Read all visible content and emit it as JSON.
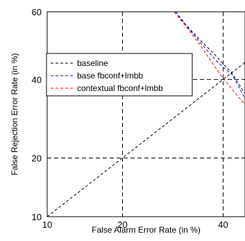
{
  "chart_data": {
    "type": "line",
    "title": "",
    "xlabel": "False Alarm Error Rate (in %)",
    "ylabel": "False Rejection Error Rate (in %)",
    "xscale": "probit",
    "yscale": "probit",
    "xlim": [
      10,
      45
    ],
    "ylim": [
      10,
      60
    ],
    "xticks": [
      10,
      20,
      40
    ],
    "yticks": [
      10,
      20,
      40,
      60
    ],
    "grid": "dashed at tick positions",
    "legend_position": "upper-left",
    "series": [
      {
        "name": "baseline",
        "color": "#000000",
        "dash": "dashed",
        "points": [
          [
            29.5,
            60
          ],
          [
            32,
            56
          ],
          [
            35,
            51.5
          ],
          [
            38,
            47.5
          ],
          [
            40,
            44.5
          ],
          [
            41.8,
            42.2
          ],
          [
            43.5,
            38.8
          ],
          [
            45,
            36
          ]
        ]
      },
      {
        "name": "base fbconf+lmbb",
        "color": "#0000ff",
        "dash": "dashed",
        "points": [
          [
            29.8,
            60
          ],
          [
            32.5,
            55
          ],
          [
            35.5,
            50
          ],
          [
            38.5,
            45.5
          ],
          [
            40.5,
            43
          ],
          [
            42,
            41.5
          ],
          [
            43.5,
            38
          ],
          [
            45,
            34.5
          ]
        ]
      },
      {
        "name": "contextual fbconf+lmbb",
        "color": "#ff0000",
        "dash": "dashed",
        "points": [
          [
            29.5,
            60
          ],
          [
            32,
            55.5
          ],
          [
            35,
            50
          ],
          [
            38,
            44
          ],
          [
            40,
            40.3
          ],
          [
            41.5,
            38
          ],
          [
            43.5,
            35
          ],
          [
            45,
            33
          ]
        ]
      },
      {
        "name": "",
        "color": "#000000",
        "dash": "dashed",
        "points": [
          [
            10,
            10
          ],
          [
            45,
            45
          ]
        ]
      }
    ]
  }
}
